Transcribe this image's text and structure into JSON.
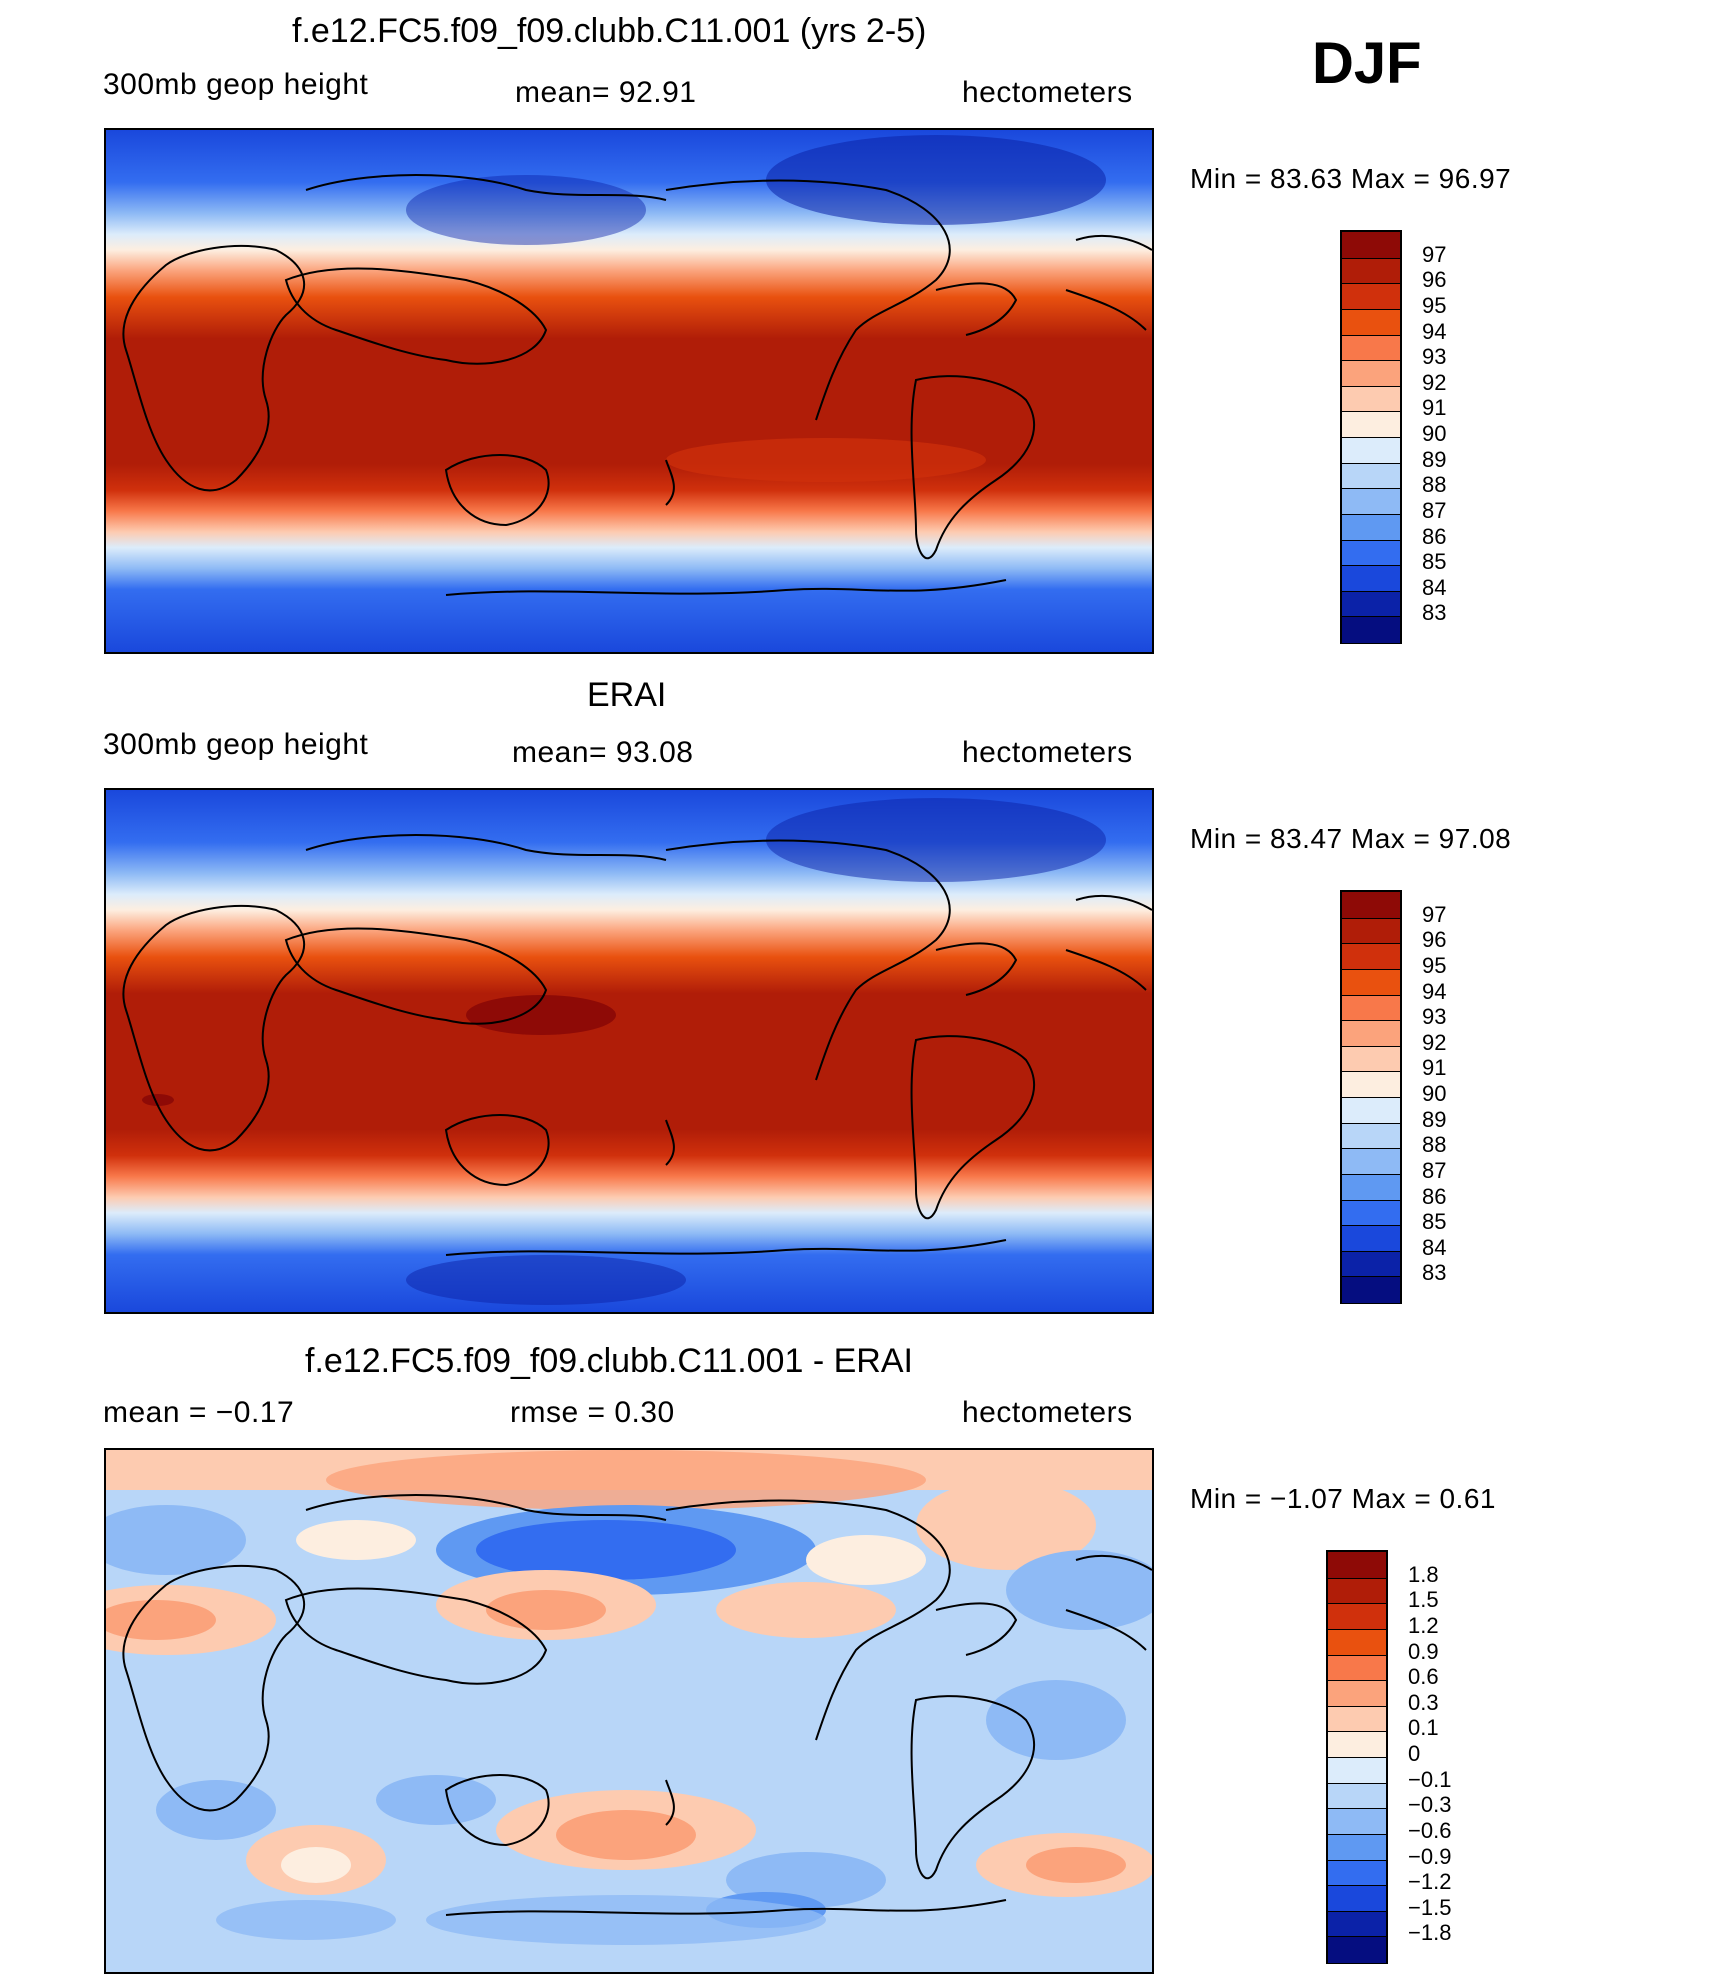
{
  "season": "DJF",
  "panels": [
    {
      "id": "model",
      "title": "f.e12.FC5.f09_f09.clubb.C11.001 (yrs 2-5)",
      "left_label": "300mb  geop  height",
      "center_label": "mean=   92.91",
      "right_label": "hectometers",
      "minmax": "Min  =    83.63  Max  =    96.97",
      "colorbar_labels": [
        "97",
        "96",
        "95",
        "94",
        "93",
        "92",
        "91",
        "90",
        "89",
        "88",
        "87",
        "86",
        "85",
        "84",
        "83"
      ],
      "colorbar_colors": [
        "#8e0a06",
        "#b01d08",
        "#d0300c",
        "#e9510f",
        "#f8784a",
        "#fba37c",
        "#fdcbb0",
        "#fdeee0",
        "#dcecfb",
        "#b8d6f8",
        "#8ebaf5",
        "#5f99f2",
        "#336df0",
        "#1a48dc",
        "#0b22a8",
        "#050d80"
      ]
    },
    {
      "id": "obs",
      "title": "ERAI",
      "left_label": "300mb  geop  height",
      "center_label": "mean=   93.08",
      "right_label": "hectometers",
      "minmax": "Min  =    83.47  Max  =    97.08",
      "colorbar_labels": [
        "97",
        "96",
        "95",
        "94",
        "93",
        "92",
        "91",
        "90",
        "89",
        "88",
        "87",
        "86",
        "85",
        "84",
        "83"
      ],
      "colorbar_colors": [
        "#8e0a06",
        "#b01d08",
        "#d0300c",
        "#e9510f",
        "#f8784a",
        "#fba37c",
        "#fdcbb0",
        "#fdeee0",
        "#dcecfb",
        "#b8d6f8",
        "#8ebaf5",
        "#5f99f2",
        "#336df0",
        "#1a48dc",
        "#0b22a8",
        "#050d80"
      ]
    },
    {
      "id": "diff",
      "title": "f.e12.FC5.f09_f09.clubb.C11.001 - ERAI",
      "left_label": "mean  =     −0.17",
      "center_label": "rmse  =      0.30",
      "right_label": "hectometers",
      "minmax": "Min  =    −1.07  Max  =      0.61",
      "colorbar_labels": [
        "1.8",
        "1.5",
        "1.2",
        "0.9",
        "0.6",
        "0.3",
        "0.1",
        "0",
        "−0.1",
        "−0.3",
        "−0.6",
        "−0.9",
        "−1.2",
        "−1.5",
        "−1.8"
      ],
      "colorbar_colors": [
        "#8e0a06",
        "#b01d08",
        "#d0300c",
        "#e9510f",
        "#f8784a",
        "#fba37c",
        "#fdcbb0",
        "#fdeee0",
        "#dcecfb",
        "#b8d6f8",
        "#8ebaf5",
        "#5f99f2",
        "#336df0",
        "#1a48dc",
        "#0b22a8",
        "#050d80"
      ]
    }
  ]
}
